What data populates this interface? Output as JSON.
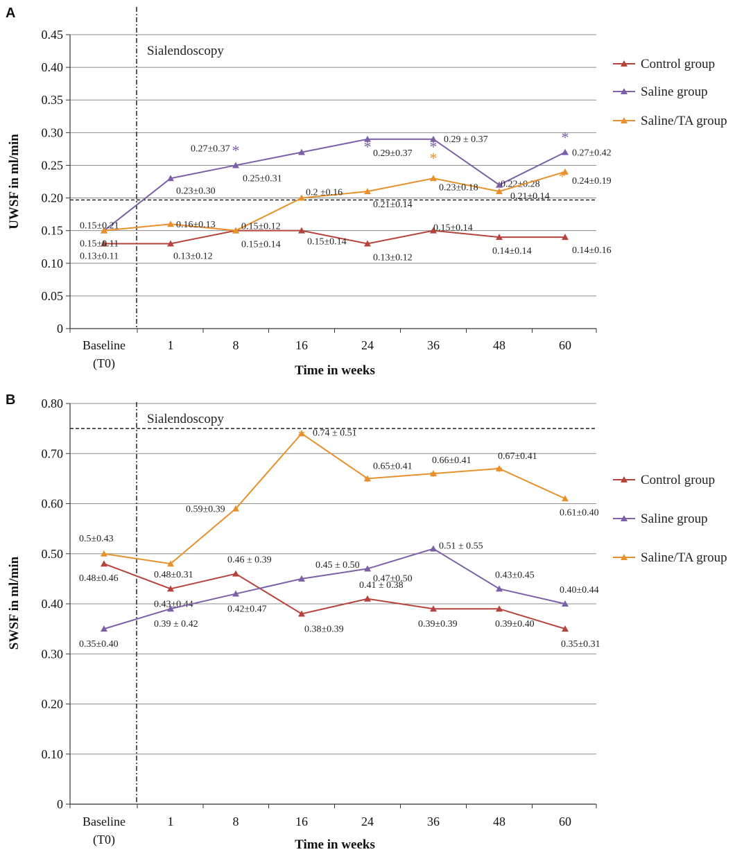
{
  "colors": {
    "control": "#b5433c",
    "saline": "#7b5fa7",
    "saline_ta": "#e8902c",
    "grid": "#8c8c8c",
    "axis": "#333333"
  },
  "chart_data": [
    {
      "type": "line",
      "panel": "A",
      "title": "",
      "xlabel": "Time in weeks",
      "ylabel": "UWSF in ml/min",
      "categories": [
        "Baseline (T0)",
        "1",
        "8",
        "16",
        "24",
        "36",
        "48",
        "60"
      ],
      "yticks": [
        "0",
        "0.05",
        "0.10",
        "0.15",
        "0.20",
        "0.25",
        "0.30",
        "0.35",
        "0.40",
        "0.45"
      ],
      "ylim": [
        0,
        0.45
      ],
      "grid": true,
      "legend": "right",
      "annotation": "Sialendoscopy",
      "threshold": 0.197,
      "series": [
        {
          "name": "Control group",
          "color_key": "control",
          "values": [
            0.13,
            0.13,
            0.15,
            0.15,
            0.13,
            0.15,
            0.14,
            0.14
          ],
          "labels": [
            "0.13±0.11",
            "0.13±0.12",
            "0.15±0.14",
            "0.15±0.14",
            "0.13±0.12",
            "0.15±0.14",
            "0.14±0.14",
            "0.14±0.16"
          ],
          "significant": [
            false,
            false,
            false,
            false,
            false,
            false,
            false,
            false
          ]
        },
        {
          "name": "Saline group",
          "color_key": "saline",
          "values": [
            0.15,
            0.23,
            0.25,
            0.27,
            0.29,
            0.29,
            0.22,
            0.27
          ],
          "labels": [
            "0.15±0.11",
            "0.23±0.30",
            "0.25±0.31",
            "0.27±0.37",
            "0.29±0.37",
            "0.29 ± 0.37",
            "0.22±0.28",
            "0.27±0.42"
          ],
          "significant": [
            false,
            false,
            true,
            false,
            true,
            true,
            false,
            true
          ]
        },
        {
          "name": "Saline/TA group",
          "color_key": "saline_ta",
          "values": [
            0.15,
            0.16,
            0.15,
            0.2,
            0.21,
            0.23,
            0.21,
            0.24
          ],
          "labels": [
            "0.15±0.21",
            "0.16±0.13",
            "0.15±0.12",
            "0.2 ±0.16",
            "0.21±0.14",
            "0.23±0.18",
            "0.21±0.14",
            "0.24±0.19"
          ],
          "significant": [
            false,
            false,
            false,
            false,
            false,
            true,
            false,
            true
          ]
        }
      ]
    },
    {
      "type": "line",
      "panel": "B",
      "title": "",
      "xlabel": "Time in weeks",
      "ylabel": "SWSF in ml/min",
      "categories": [
        "Baseline (T0)",
        "1",
        "8",
        "16",
        "24",
        "36",
        "48",
        "60"
      ],
      "yticks": [
        "0",
        "0.10",
        "0.20",
        "0.30",
        "0.40",
        "0.50",
        "0.60",
        "0.70",
        "0.80"
      ],
      "ylim": [
        0,
        0.8
      ],
      "grid": true,
      "legend": "right",
      "annotation": "Sialendoscopy",
      "threshold": 0.75,
      "series": [
        {
          "name": "Control group",
          "color_key": "control",
          "values": [
            0.48,
            0.43,
            0.46,
            0.38,
            0.41,
            0.39,
            0.39,
            0.35
          ],
          "labels": [
            "0.48±0.46",
            "0.43±0.44",
            "0.46 ± 0.39",
            "0.38±0.39",
            "0.41 ± 0.38",
            "0.39±0.39",
            "0.39±0.40",
            "0.35±0.31"
          ],
          "significant": [
            false,
            false,
            false,
            false,
            false,
            false,
            false,
            false
          ]
        },
        {
          "name": "Saline group",
          "color_key": "saline",
          "values": [
            0.35,
            0.39,
            0.42,
            0.45,
            0.47,
            0.51,
            0.43,
            0.4
          ],
          "labels": [
            "0.35±0.40",
            "0.39 ± 0.42",
            "0.42±0.47",
            "0.45 ± 0.50",
            "0.47±0.50",
            "0.51 ± 0.55",
            "0.43±0.45",
            "0.40±0.44"
          ],
          "significant": [
            false,
            false,
            false,
            false,
            false,
            false,
            false,
            false
          ]
        },
        {
          "name": "Saline/TA group",
          "color_key": "saline_ta",
          "values": [
            0.5,
            0.48,
            0.59,
            0.74,
            0.65,
            0.66,
            0.67,
            0.61
          ],
          "labels": [
            "0.5±0.43",
            "0.48±0.31",
            "0.59±0.39",
            "0.74 ± 0.51",
            "0.65±0.41",
            "0.66±0.41",
            "0.67±0.41",
            "0.61±0.40"
          ],
          "significant": [
            false,
            false,
            false,
            true,
            true,
            true,
            true,
            false
          ]
        }
      ]
    }
  ]
}
